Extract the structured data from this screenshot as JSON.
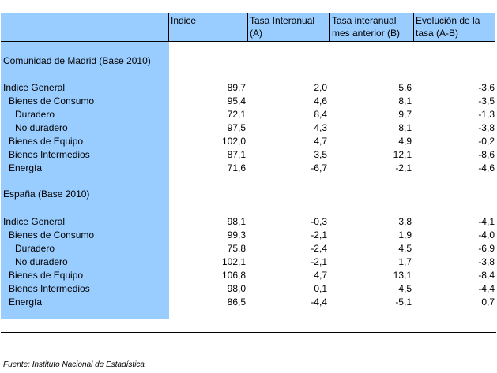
{
  "table": {
    "headers": {
      "col1": [
        "Indice"
      ],
      "col2": [
        "Tasa Interanual",
        "(A)"
      ],
      "col3": [
        "Tasa interanual",
        "mes anterior (B)"
      ],
      "col4": [
        "Evolución de la",
        "tasa (A-B)"
      ]
    },
    "sections": [
      {
        "title": "Comunidad de Madrid (Base 2010)",
        "rows": [
          {
            "label": "Indice General",
            "indice": "89,7",
            "a": "2,0",
            "b": "5,6",
            "ab": "-3,6"
          },
          {
            "label": "Bienes de Consumo",
            "indice": "95,4",
            "a": "4,6",
            "b": "8,1",
            "ab": "-3,5"
          },
          {
            "label": "Duradero",
            "indice": "72,1",
            "a": "8,4",
            "b": "9,7",
            "ab": "-1,3"
          },
          {
            "label": "No duradero",
            "indice": "97,5",
            "a": "4,3",
            "b": "8,1",
            "ab": "-3,8"
          },
          {
            "label": "Bienes de Equipo",
            "indice": "102,0",
            "a": "4,7",
            "b": "4,9",
            "ab": "-0,2"
          },
          {
            "label": "Bienes Intermedios",
            "indice": "87,1",
            "a": "3,5",
            "b": "12,1",
            "ab": "-8,6"
          },
          {
            "label": "Energía",
            "indice": "71,6",
            "a": "-6,7",
            "b": "-2,1",
            "ab": "-4,6"
          }
        ]
      },
      {
        "title": "España (Base 2010)",
        "rows": [
          {
            "label": "Indice General",
            "indice": "98,1",
            "a": "-0,3",
            "b": "3,8",
            "ab": "-4,1"
          },
          {
            "label": "Bienes de Consumo",
            "indice": "99,3",
            "a": "-2,1",
            "b": "1,9",
            "ab": "-4,0"
          },
          {
            "label": "Duradero",
            "indice": "75,8",
            "a": "-2,4",
            "b": "4,5",
            "ab": "-6,9"
          },
          {
            "label": "No duradero",
            "indice": "102,1",
            "a": "-2,1",
            "b": "1,7",
            "ab": "-3,8"
          },
          {
            "label": "Bienes de Equipo",
            "indice": "106,8",
            "a": "4,7",
            "b": "13,1",
            "ab": "-8,4"
          },
          {
            "label": "Bienes Intermedios",
            "indice": "98,0",
            "a": "0,1",
            "b": "4,5",
            "ab": "-4,4"
          },
          {
            "label": "Energía",
            "indice": "86,5",
            "a": "-4,4",
            "b": "-5,1",
            "ab": "0,7"
          }
        ]
      }
    ]
  },
  "source": "Fuente: Instituto Nacional de Estadística",
  "colors": {
    "header_band": "#99ccff",
    "label_band": "#99ccff",
    "rules": "#000000"
  }
}
